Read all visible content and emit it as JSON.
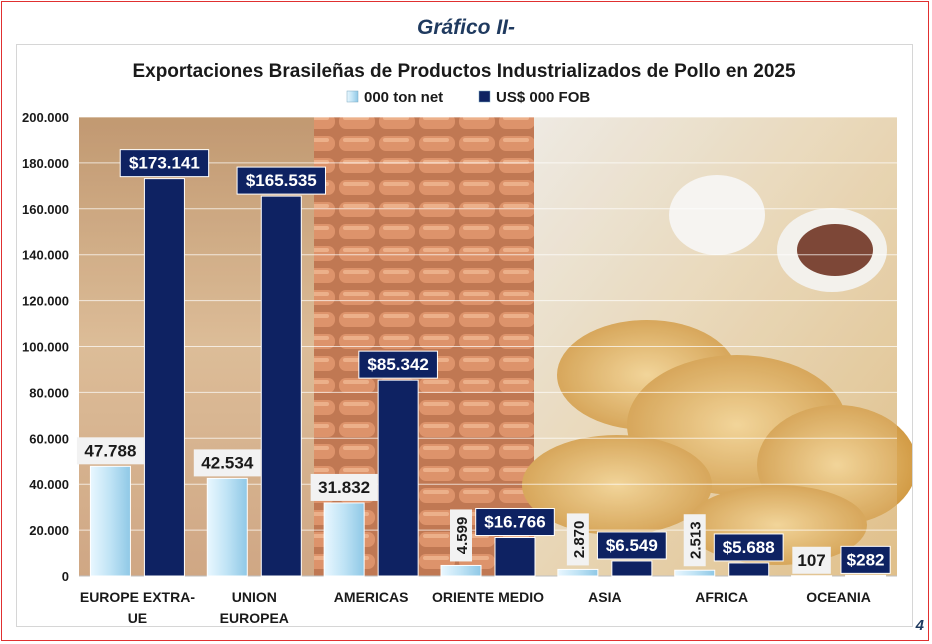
{
  "page": {
    "heading": "Gráfico II-",
    "page_number": "4"
  },
  "colors": {
    "series_ton": "#bfe3f5",
    "series_fob": "#0e2262",
    "label_fob_bg": "#0e2262"
  },
  "chart_data": {
    "type": "bar",
    "title": "Exportaciones Brasileñas de Productos Industrializados de Pollo en 2025",
    "categories": [
      [
        "EUROPE EXTRA-",
        "UE"
      ],
      [
        "UNION",
        "EUROPEA"
      ],
      [
        "AMERICAS"
      ],
      [
        "ORIENTE MEDIO"
      ],
      [
        "ASIA"
      ],
      [
        "AFRICA"
      ],
      [
        "OCEANIA"
      ]
    ],
    "series": [
      {
        "name": "000 ton net",
        "values": [
          47788,
          42534,
          31832,
          4599,
          2870,
          2513,
          107
        ],
        "labels": [
          "47.788",
          "42.534",
          "31.832",
          "4.599",
          "2.870",
          "2.513",
          "107"
        ]
      },
      {
        "name": "US$ 000 FOB",
        "values": [
          173141,
          165535,
          85342,
          16766,
          6549,
          5688,
          282
        ],
        "labels": [
          "$173.141",
          "$165.535",
          "$85.342",
          "$16.766",
          "$6.549",
          "$5.688",
          "$282"
        ]
      }
    ],
    "ylim": [
      0,
      200000
    ],
    "yticks": [
      "0",
      "20.000",
      "40.000",
      "60.000",
      "80.000",
      "100.000",
      "120.000",
      "140.000",
      "160.000",
      "180.000",
      "200.000"
    ],
    "legend_position": "top-center",
    "grid": true
  }
}
